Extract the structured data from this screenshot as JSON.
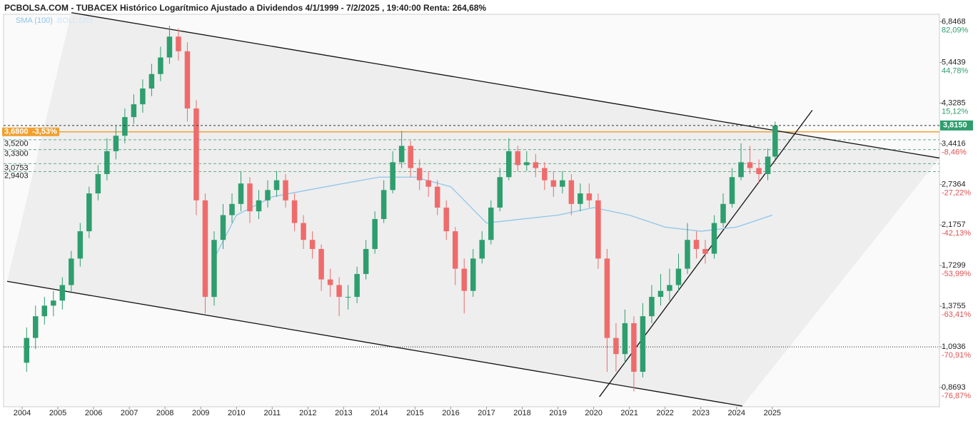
{
  "chart_data": {
    "type": "candlestick",
    "title": "PCBOLSA.COM - TUBACEX Histórico Logarítmico Ajustado a Dividendos 4/1/1999 - 7/2/2025 , 19:40:00 Renta: 264,68%",
    "log_scale": true,
    "xlim": [
      2003.48,
      2029.68
    ],
    "xticks": [
      2004,
      2005,
      2006,
      2007,
      2008,
      2009,
      2010,
      2011,
      2012,
      2013,
      2014,
      2015,
      2016,
      2017,
      2018,
      2019,
      2020,
      2021,
      2022,
      2023,
      2024,
      2025
    ],
    "ylim": [
      0.78,
      7.5
    ],
    "yticks": [
      {
        "value": 6.8468,
        "label": "6,8468"
      },
      {
        "value": 5.4439,
        "label": "5,4439"
      },
      {
        "value": 4.3285,
        "label": "4,3285"
      },
      {
        "value": 3.4416,
        "label": "3,4416"
      },
      {
        "value": 2.7364,
        "label": "2,7364"
      },
      {
        "value": 2.1757,
        "label": "2,1757"
      },
      {
        "value": 1.7299,
        "label": "1,7299"
      },
      {
        "value": 1.3755,
        "label": "1,3755"
      },
      {
        "value": 1.0936,
        "label": "1,0936"
      },
      {
        "value": 0.8693,
        "label": "0,8693"
      }
    ],
    "ytick_changes": [
      {
        "value": 82.09,
        "label": "82,09%"
      },
      {
        "value": 44.78,
        "label": "44,78%"
      },
      {
        "value": 15.12,
        "label": "15,12%"
      },
      {
        "value": -8.46,
        "label": "-8,46%"
      },
      {
        "value": -27.22,
        "label": "-27,22%"
      },
      {
        "value": -42.13,
        "label": "-42,13%"
      },
      {
        "value": -53.99,
        "label": "-53,99%"
      },
      {
        "value": -63.41,
        "label": "-63,41%"
      },
      {
        "value": -70.91,
        "label": "-70,91%"
      },
      {
        "value": -76.87,
        "label": "-76,87%"
      }
    ],
    "up_color": "#2e9e6e",
    "down_color": "#ef6b6b",
    "x": [
      2004.125,
      2004.375,
      2004.625,
      2004.875,
      2005.125,
      2005.375,
      2005.625,
      2005.875,
      2006.125,
      2006.375,
      2006.625,
      2006.875,
      2007.125,
      2007.375,
      2007.625,
      2007.875,
      2008.125,
      2008.375,
      2008.625,
      2008.875,
      2009.125,
      2009.375,
      2009.625,
      2009.875,
      2010.125,
      2010.375,
      2010.625,
      2010.875,
      2011.125,
      2011.375,
      2011.625,
      2011.875,
      2012.125,
      2012.375,
      2012.625,
      2012.875,
      2013.125,
      2013.375,
      2013.625,
      2013.875,
      2014.125,
      2014.375,
      2014.625,
      2014.875,
      2015.125,
      2015.375,
      2015.625,
      2015.875,
      2016.125,
      2016.375,
      2016.625,
      2016.875,
      2017.125,
      2017.375,
      2017.625,
      2017.875,
      2018.125,
      2018.375,
      2018.625,
      2018.875,
      2019.125,
      2019.375,
      2019.625,
      2019.875,
      2020.125,
      2020.375,
      2020.625,
      2020.875,
      2021.125,
      2021.375,
      2021.625,
      2021.875,
      2022.125,
      2022.375,
      2022.625,
      2022.875,
      2023.125,
      2023.375,
      2023.625,
      2023.875,
      2024.125,
      2024.375,
      2024.625,
      2024.875,
      2025.08
    ],
    "open": [
      1.0,
      1.15,
      1.3,
      1.38,
      1.42,
      1.55,
      1.8,
      2.1,
      2.6,
      2.9,
      3.3,
      3.6,
      4.0,
      4.3,
      4.7,
      5.1,
      5.6,
      6.3,
      5.8,
      4.2,
      2.5,
      1.45,
      2.0,
      2.3,
      2.45,
      2.75,
      2.35,
      2.5,
      2.65,
      2.8,
      2.5,
      2.2,
      2.0,
      1.9,
      1.6,
      1.55,
      1.45,
      1.45,
      1.65,
      1.9,
      2.25,
      2.65,
      3.1,
      3.4,
      3.0,
      2.8,
      2.7,
      2.4,
      2.1,
      1.7,
      1.5,
      1.8,
      2.0,
      2.4,
      2.85,
      3.3,
      3.05,
      3.1,
      3.0,
      2.8,
      2.7,
      2.8,
      2.45,
      2.6,
      2.5,
      1.8,
      1.15,
      1.05,
      1.25,
      0.95,
      1.3,
      1.45,
      1.5,
      1.55,
      1.7,
      2.0,
      1.9,
      1.85,
      2.2,
      2.45,
      2.85,
      3.1,
      3.0,
      2.9,
      3.2
    ],
    "high": [
      1.22,
      1.38,
      1.45,
      1.5,
      1.62,
      1.88,
      2.2,
      2.7,
      3.05,
      3.55,
      3.8,
      4.2,
      4.55,
      4.95,
      5.4,
      5.95,
      6.7,
      6.6,
      6.1,
      4.4,
      2.6,
      2.1,
      2.45,
      2.6,
      2.95,
      2.85,
      2.65,
      2.8,
      2.95,
      2.9,
      2.6,
      2.3,
      2.1,
      1.95,
      1.7,
      1.62,
      1.55,
      1.72,
      2.0,
      2.35,
      2.8,
      3.3,
      3.7,
      3.5,
      3.15,
      2.95,
      2.8,
      2.5,
      2.15,
      1.8,
      1.9,
      2.1,
      2.5,
      3.0,
      3.55,
      3.4,
      3.3,
      3.25,
      3.1,
      2.95,
      2.95,
      2.9,
      2.75,
      2.75,
      2.6,
      1.9,
      1.25,
      1.35,
      1.3,
      1.4,
      1.55,
      1.65,
      1.7,
      1.85,
      2.2,
      2.1,
      2.0,
      2.3,
      2.6,
      3.0,
      3.45,
      3.4,
      3.15,
      3.35,
      3.9
    ],
    "low": [
      0.95,
      1.08,
      1.24,
      1.3,
      1.35,
      1.48,
      1.72,
      2.02,
      2.5,
      2.8,
      3.15,
      3.45,
      3.85,
      4.1,
      4.5,
      4.9,
      5.4,
      5.5,
      3.9,
      2.3,
      1.32,
      1.38,
      1.9,
      2.2,
      2.35,
      2.2,
      2.25,
      2.4,
      2.55,
      2.4,
      2.1,
      1.9,
      1.8,
      1.5,
      1.45,
      1.3,
      1.35,
      1.4,
      1.6,
      1.85,
      2.2,
      2.6,
      3.0,
      2.85,
      2.65,
      2.55,
      2.3,
      2.0,
      1.55,
      1.32,
      1.45,
      1.75,
      1.95,
      2.35,
      2.8,
      2.95,
      2.95,
      2.85,
      2.65,
      2.55,
      2.6,
      2.3,
      2.35,
      2.4,
      1.7,
      0.95,
      0.95,
      1.0,
      0.85,
      0.92,
      1.25,
      1.38,
      1.42,
      1.5,
      1.65,
      1.8,
      1.75,
      1.8,
      2.15,
      2.4,
      2.8,
      2.9,
      2.75,
      2.8,
      3.15
    ],
    "close": [
      1.15,
      1.3,
      1.38,
      1.42,
      1.55,
      1.8,
      2.1,
      2.6,
      2.9,
      3.3,
      3.6,
      4.0,
      4.3,
      4.7,
      5.1,
      5.6,
      6.3,
      5.8,
      4.2,
      2.5,
      1.45,
      2.0,
      2.3,
      2.45,
      2.75,
      2.35,
      2.5,
      2.65,
      2.8,
      2.5,
      2.2,
      2.0,
      1.9,
      1.6,
      1.55,
      1.45,
      1.45,
      1.65,
      1.9,
      2.25,
      2.65,
      3.1,
      3.4,
      3.0,
      2.8,
      2.7,
      2.4,
      2.1,
      1.7,
      1.5,
      1.8,
      2.0,
      2.4,
      2.85,
      3.3,
      3.05,
      3.1,
      3.0,
      2.8,
      2.7,
      2.8,
      2.45,
      2.6,
      2.5,
      1.8,
      1.15,
      1.05,
      1.25,
      0.95,
      1.3,
      1.45,
      1.5,
      1.55,
      1.7,
      2.0,
      1.9,
      1.85,
      2.2,
      2.45,
      2.85,
      3.1,
      3.0,
      2.9,
      3.2,
      3.815
    ],
    "indicators": [
      {
        "name": "SMA (100)",
        "color": "#8ec5ea",
        "x": [
          2009.3,
          2010,
          2011,
          2012,
          2013,
          2014,
          2015,
          2016,
          2017,
          2018,
          2019,
          2020,
          2021,
          2022,
          2023,
          2024,
          2025
        ],
        "values": [
          1.75,
          2.3,
          2.55,
          2.65,
          2.75,
          2.85,
          2.85,
          2.7,
          2.2,
          2.25,
          2.3,
          2.4,
          2.3,
          2.15,
          2.1,
          2.15,
          2.3
        ]
      },
      {
        "name": "BOLL (20)",
        "color": "#d0e6f5"
      }
    ],
    "levels": [
      {
        "value": 3.68,
        "label": "3,6800",
        "change_label": "-3,53%",
        "color": "#f0a030"
      },
      {
        "value": 3.52,
        "label": "3,5200",
        "color": "#6aa88a"
      },
      {
        "value": 3.33,
        "label": "3,3300",
        "color": "#6aa88a"
      },
      {
        "value": 3.0753,
        "label": "3,0753",
        "color": "#6aa88a"
      },
      {
        "value": 2.9403,
        "label": "2,9403",
        "color": "#6aa88a"
      }
    ],
    "dotted_level": 1.0936,
    "last_price": {
      "value": 3.815,
      "label": "3,8150",
      "color": "#2e9e6e"
    },
    "trendlines": [
      {
        "x": [
          2005.38,
          2029.68
        ],
        "y": [
          7.21,
          3.175
        ]
      },
      {
        "x": [
          2003.58,
          2024.16
        ],
        "y": [
          1.583,
          0.783
        ]
      },
      {
        "x": [
          2020.16,
          2026.12
        ],
        "y": [
          0.825,
          4.158
        ]
      }
    ]
  }
}
